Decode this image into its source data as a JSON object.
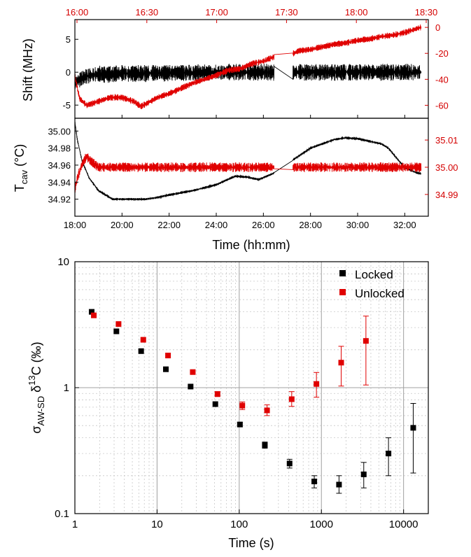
{
  "colors": {
    "locked": "#000000",
    "unlocked": "#e00000",
    "right_axis": "#d40000",
    "grid_major": "#a0a0a0",
    "grid_minor": "#c8c8c8"
  },
  "chart_data": [
    {
      "type": "line",
      "top_ticks": [
        "16:00",
        "16:30",
        "17:00",
        "17:30",
        "18:00",
        "18:30"
      ],
      "x_ticks": [
        "18:00",
        "20:00",
        "22:00",
        "24:00",
        "26:00",
        "28:00",
        "30:00",
        "32:00"
      ],
      "xlim": [
        18,
        33
      ],
      "ylabel": "Shift (MHz)",
      "ylim": [
        -7,
        8
      ],
      "yticks": [
        "5",
        "0",
        "-5"
      ],
      "ylim_right": [
        -70,
        6
      ],
      "yticks_right": [
        "0",
        "-20",
        "-40",
        "-60"
      ],
      "series": [
        {
          "color_key": "locked",
          "axis": "left",
          "x": [
            18.0,
            18.5,
            19,
            19.5,
            20,
            20.5,
            21,
            22,
            23,
            24,
            25,
            26,
            26.4,
            27.3,
            28,
            29,
            30,
            31,
            32,
            32.7
          ],
          "y": [
            -1.5,
            -0.6,
            -0.3,
            -0.3,
            -0.2,
            -0.2,
            -0.2,
            -0.1,
            -0.1,
            0,
            0,
            0,
            0,
            0,
            0,
            0,
            0,
            0,
            0,
            0
          ],
          "band": 1.3
        },
        {
          "color_key": "unlocked",
          "axis": "right",
          "x": [
            18.0,
            18.2,
            18.5,
            19,
            19.5,
            20,
            20.5,
            20.8,
            21.5,
            22,
            22.5,
            23,
            23.5,
            24,
            24.5,
            25,
            25.5,
            26,
            26.4,
            27.3,
            27.5,
            28,
            28.5,
            29,
            29.5,
            30,
            30.5,
            31,
            31.5,
            32,
            32.5,
            32.7
          ],
          "y": [
            -38,
            -55,
            -60,
            -57,
            -54,
            -54,
            -57,
            -61,
            -54,
            -51,
            -47,
            -43,
            -40,
            -37,
            -33,
            -32,
            -28,
            -26,
            -23,
            -20,
            -18,
            -17,
            -15,
            -13,
            -12,
            -10,
            -9,
            -7,
            -6,
            -4,
            -1,
            0
          ],
          "band": 2.5
        }
      ]
    },
    {
      "type": "line",
      "xlabel": "Time (hh:mm)",
      "x_ticks": [
        "18:00",
        "20:00",
        "22:00",
        "24:00",
        "26:00",
        "28:00",
        "30:00",
        "32:00"
      ],
      "xlim": [
        18,
        33
      ],
      "ylabel_main": "T",
      "ylabel_sub": "cav",
      "ylabel_unit": " (°C)",
      "ylim": [
        34.9,
        35.015
      ],
      "yticks": [
        "35.00",
        "34.98",
        "34.96",
        "34.94",
        "34.92"
      ],
      "ylim_right": [
        34.982,
        35.018
      ],
      "yticks_right": [
        "35.01",
        "35.00",
        "34.99"
      ],
      "series": [
        {
          "color_key": "locked",
          "axis": "left",
          "x": [
            18.0,
            18.1,
            18.3,
            18.6,
            19,
            19.3,
            19.6,
            20,
            20.5,
            21,
            21.5,
            22,
            23,
            24,
            24.8,
            25.3,
            25.8,
            26.4,
            27.3,
            28,
            28.5,
            29,
            29.5,
            30,
            30.5,
            31,
            31.3,
            31.6,
            32,
            32.5,
            32.7
          ],
          "y": [
            35.01,
            34.99,
            34.965,
            34.945,
            34.93,
            34.925,
            34.92,
            34.92,
            34.92,
            34.92,
            34.922,
            34.925,
            34.93,
            34.937,
            34.947,
            34.946,
            34.943,
            34.95,
            34.967,
            34.98,
            34.985,
            34.99,
            34.992,
            34.991,
            34.988,
            34.985,
            34.98,
            34.97,
            34.957,
            34.951,
            34.95
          ],
          "band": 0.0015
        },
        {
          "color_key": "unlocked",
          "axis": "right",
          "x": [
            18.0,
            18.1,
            18.3,
            18.5,
            18.7,
            19,
            19.5,
            20,
            21,
            22,
            23,
            24,
            25,
            26,
            26.4,
            27.3,
            28,
            29,
            30,
            31,
            32,
            32.7
          ],
          "y": [
            34.992,
            34.996,
            35.001,
            35.004,
            35.002,
            35.0,
            35.0,
            35.0,
            35.0,
            35.0,
            35.0,
            35.0,
            35.0,
            35.0,
            35.0,
            35.0,
            35.0,
            35.0,
            35.0,
            35.0,
            35.0,
            35.0
          ],
          "band": 0.0018
        }
      ]
    },
    {
      "type": "scatter",
      "xlabel": "Time (s)",
      "ylabel_main": "σ",
      "ylabel_sub": "AW-SD",
      "ylabel_mid": " δ",
      "ylabel_sup": "13",
      "ylabel_unit": "C (‰)",
      "xscale": "log",
      "yscale": "log",
      "xlim": [
        1,
        20000
      ],
      "ylim": [
        0.1,
        10
      ],
      "x_ticks": [
        "1",
        "10",
        "100",
        "1000",
        "10000"
      ],
      "y_ticks": [
        "10",
        "1",
        "0.1"
      ],
      "legend": "top-right",
      "series": [
        {
          "name": "Locked",
          "color_key": "locked",
          "x": [
            1.6,
            3.2,
            6.4,
            12.8,
            25.6,
            51.2,
            102,
            205,
            410,
            819,
            1638,
            3277,
            6554,
            13107
          ],
          "y": [
            4.0,
            2.8,
            1.95,
            1.4,
            1.02,
            0.74,
            0.51,
            0.35,
            0.25,
            0.18,
            0.17,
            0.205,
            0.3,
            0.48
          ],
          "err_low": [
            0,
            0,
            0,
            0,
            0,
            0,
            0.02,
            0.02,
            0.02,
            0.02,
            0.025,
            0.045,
            0.1,
            0.27
          ],
          "err_high": [
            0,
            0,
            0,
            0,
            0,
            0,
            0.02,
            0.02,
            0.02,
            0.02,
            0.03,
            0.05,
            0.1,
            0.27
          ]
        },
        {
          "name": "Unlocked",
          "color_key": "unlocked",
          "x": [
            1.7,
            3.4,
            6.8,
            13.6,
            27.2,
            54.4,
            109,
            218,
            435,
            870,
            1741,
            3482
          ],
          "y": [
            3.75,
            3.2,
            2.4,
            1.8,
            1.33,
            0.89,
            0.72,
            0.66,
            0.81,
            1.07,
            1.58,
            2.35
          ],
          "err_low": [
            0,
            0,
            0,
            0,
            0,
            0.04,
            0.05,
            0.06,
            0.1,
            0.23,
            0.55,
            1.3
          ],
          "err_high": [
            0,
            0,
            0,
            0,
            0,
            0.04,
            0.05,
            0.07,
            0.12,
            0.25,
            0.55,
            1.35
          ]
        }
      ]
    }
  ]
}
